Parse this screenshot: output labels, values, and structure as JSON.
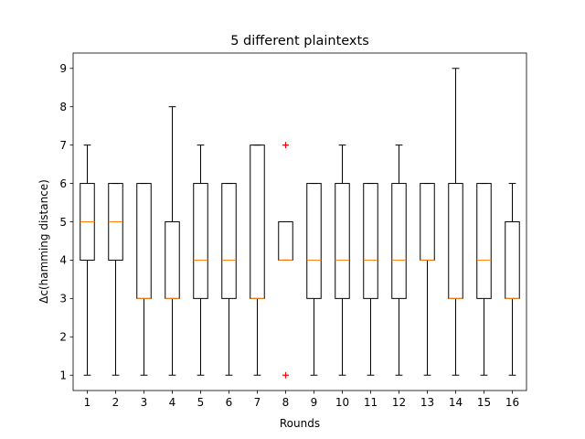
{
  "chart_data": {
    "type": "box",
    "title": "5 different plaintexts",
    "xlabel": "Rounds",
    "ylabel": "Δc(hamming distance)",
    "ylim": [
      0.6,
      9.4
    ],
    "yticks": [
      1,
      2,
      3,
      4,
      5,
      6,
      7,
      8,
      9
    ],
    "grid": false,
    "categories": [
      "1",
      "2",
      "3",
      "4",
      "5",
      "6",
      "7",
      "8",
      "9",
      "10",
      "11",
      "12",
      "13",
      "14",
      "15",
      "16"
    ],
    "boxes": [
      {
        "round": "1",
        "whisker_low": 1,
        "q1": 4,
        "median": 5,
        "q3": 6,
        "whisker_high": 7,
        "outliers": []
      },
      {
        "round": "2",
        "whisker_low": 1,
        "q1": 4,
        "median": 5,
        "q3": 6,
        "whisker_high": 6,
        "outliers": []
      },
      {
        "round": "3",
        "whisker_low": 1,
        "q1": 3,
        "median": 3,
        "q3": 6,
        "whisker_high": 6,
        "outliers": []
      },
      {
        "round": "4",
        "whisker_low": 1,
        "q1": 3,
        "median": 3,
        "q3": 5,
        "whisker_high": 8,
        "outliers": []
      },
      {
        "round": "5",
        "whisker_low": 1,
        "q1": 3,
        "median": 4,
        "q3": 6,
        "whisker_high": 7,
        "outliers": []
      },
      {
        "round": "6",
        "whisker_low": 1,
        "q1": 3,
        "median": 4,
        "q3": 6,
        "whisker_high": 6,
        "outliers": []
      },
      {
        "round": "7",
        "whisker_low": 1,
        "q1": 3,
        "median": 3,
        "q3": 7,
        "whisker_high": 7,
        "outliers": []
      },
      {
        "round": "8",
        "whisker_low": 4,
        "q1": 4,
        "median": 4,
        "q3": 5,
        "whisker_high": 5,
        "outliers": [
          1,
          7
        ]
      },
      {
        "round": "9",
        "whisker_low": 1,
        "q1": 3,
        "median": 4,
        "q3": 6,
        "whisker_high": 6,
        "outliers": []
      },
      {
        "round": "10",
        "whisker_low": 1,
        "q1": 3,
        "median": 4,
        "q3": 6,
        "whisker_high": 7,
        "outliers": []
      },
      {
        "round": "11",
        "whisker_low": 1,
        "q1": 3,
        "median": 4,
        "q3": 6,
        "whisker_high": 6,
        "outliers": []
      },
      {
        "round": "12",
        "whisker_low": 1,
        "q1": 3,
        "median": 4,
        "q3": 6,
        "whisker_high": 7,
        "outliers": []
      },
      {
        "round": "13",
        "whisker_low": 1,
        "q1": 4,
        "median": 4,
        "q3": 6,
        "whisker_high": 6,
        "outliers": []
      },
      {
        "round": "14",
        "whisker_low": 1,
        "q1": 3,
        "median": 3,
        "q3": 6,
        "whisker_high": 9,
        "outliers": []
      },
      {
        "round": "15",
        "whisker_low": 1,
        "q1": 3,
        "median": 4,
        "q3": 6,
        "whisker_high": 6,
        "outliers": []
      },
      {
        "round": "16",
        "whisker_low": 1,
        "q1": 3,
        "median": 3,
        "q3": 5,
        "whisker_high": 6,
        "outliers": []
      }
    ],
    "colors": {
      "box": "#000000",
      "median": "#ff7f0e",
      "outlier": "#ff0000"
    }
  }
}
